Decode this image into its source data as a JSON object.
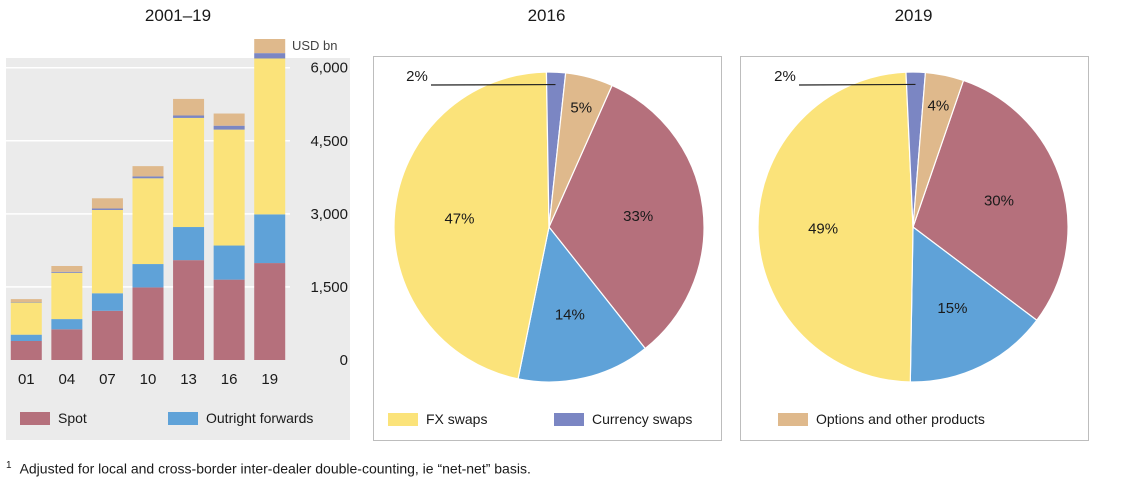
{
  "colors": {
    "spot": "#b5707c",
    "outright_forwards": "#5fa2d8",
    "fx_swaps": "#fbe37a",
    "currency_swaps": "#7b86c3",
    "options": "#dfb98c"
  },
  "legend": {
    "spot": "Spot",
    "outright_forwards": "Outright forwards",
    "fx_swaps": "FX swaps",
    "currency_swaps": "Currency swaps",
    "options": "Options and other products"
  },
  "footnote": {
    "marker": "1",
    "text": "Adjusted for local and cross-border inter-dealer double-counting, ie “net-net” basis."
  },
  "chart_data": [
    {
      "type": "bar",
      "stacked": true,
      "title": "2001–19",
      "ylabel": "USD bn",
      "categories": [
        "01",
        "04",
        "07",
        "10",
        "13",
        "16",
        "19"
      ],
      "ylim": [
        0,
        6200
      ],
      "yticks": [
        0,
        1500,
        3000,
        4500,
        6000
      ],
      "ytick_labels": [
        "0",
        "1,500",
        "3,000",
        "4,500",
        "6,000"
      ],
      "grid": true,
      "series": [
        {
          "key": "spot",
          "name": "Spot",
          "values": [
            390,
            630,
            1010,
            1490,
            2050,
            1650,
            1990
          ]
        },
        {
          "key": "outright_forwards",
          "name": "Outright forwards",
          "values": [
            130,
            210,
            360,
            480,
            680,
            700,
            1000
          ]
        },
        {
          "key": "fx_swaps",
          "name": "FX swaps",
          "values": [
            660,
            950,
            1710,
            1760,
            2240,
            2380,
            3200
          ]
        },
        {
          "key": "currency_swaps",
          "name": "Currency swaps",
          "values": [
            10,
            20,
            30,
            40,
            50,
            80,
            110
          ]
        },
        {
          "key": "options",
          "name": "Options and other products",
          "values": [
            60,
            120,
            210,
            210,
            340,
            250,
            290
          ]
        }
      ]
    },
    {
      "type": "pie",
      "title": "2016",
      "slices": [
        {
          "key": "spot",
          "name": "Spot",
          "value": 33,
          "label": "33%"
        },
        {
          "key": "outright_forwards",
          "name": "Outright forwards",
          "value": 14,
          "label": "14%"
        },
        {
          "key": "fx_swaps",
          "name": "FX swaps",
          "value": 47,
          "label": "47%"
        },
        {
          "key": "currency_swaps",
          "name": "Currency swaps",
          "value": 2,
          "label": "2%"
        },
        {
          "key": "options",
          "name": "Options and other products",
          "value": 5,
          "label": "5%"
        }
      ]
    },
    {
      "type": "pie",
      "title": "2019",
      "slices": [
        {
          "key": "spot",
          "name": "Spot",
          "value": 30,
          "label": "30%"
        },
        {
          "key": "outright_forwards",
          "name": "Outright forwards",
          "value": 15,
          "label": "15%"
        },
        {
          "key": "fx_swaps",
          "name": "FX swaps",
          "value": 49,
          "label": "49%"
        },
        {
          "key": "currency_swaps",
          "name": "Currency swaps",
          "value": 2,
          "label": "2%"
        },
        {
          "key": "options",
          "name": "Options and other products",
          "value": 4,
          "label": "4%"
        }
      ]
    }
  ]
}
